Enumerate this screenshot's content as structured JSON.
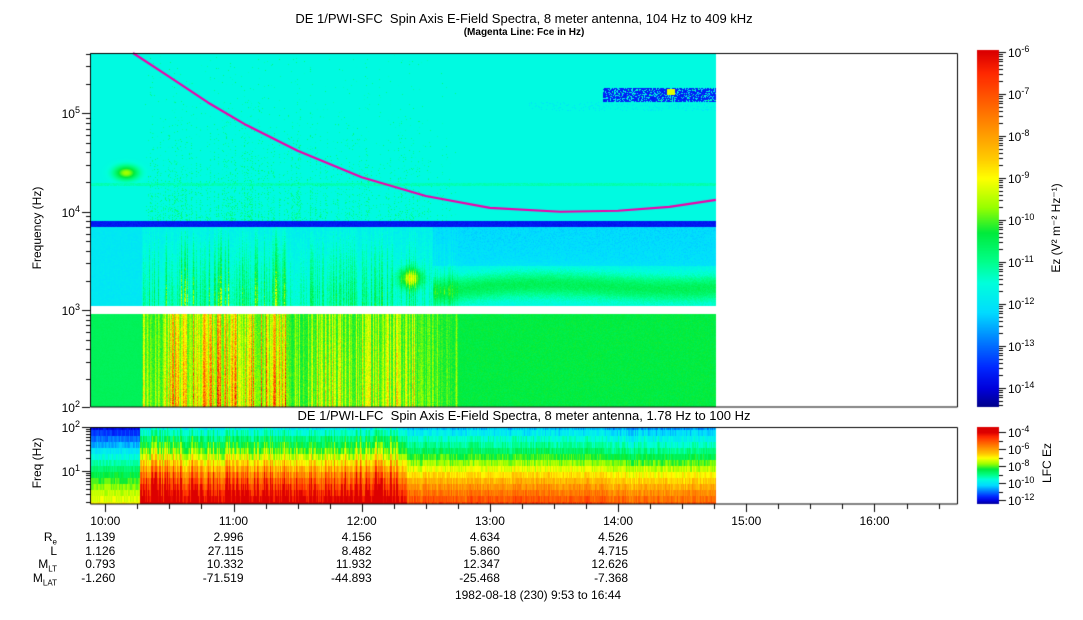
{
  "figure": {
    "background": "#ffffff",
    "footer": "1982-08-18 (230) 9:53 to 16:44"
  },
  "chart_data": [
    {
      "type": "heatmap",
      "instrument": "SFC",
      "title": "DE 1/PWI-SFC  Spin Axis E-Field Spectra, 8 meter antenna, 104 Hz to 409 kHz",
      "subtitle": "(Magenta Line: Fce in Hz)",
      "ylabel": "Frequency (Hz)",
      "y_scale": "log",
      "y_range_hz": [
        104,
        409000
      ],
      "y_tick_exponents": [
        5,
        4,
        3,
        2
      ],
      "x_time_range": [
        "9:53",
        "16:44"
      ],
      "x_major_ticks": [
        "10:00",
        "11:00",
        "12:00",
        "13:00",
        "14:00",
        "15:00",
        "16:00"
      ],
      "x_minor_tick_minutes": 15,
      "data_end_time": "14:46",
      "colorbar": {
        "label": "Ez (V² m⁻² Hz⁻¹)",
        "tick_exponents": [
          -6,
          -7,
          -8,
          -9,
          -10,
          -11,
          -12,
          -13,
          -14
        ],
        "colormap": "rainbow"
      },
      "magenta_line": {
        "name": "Fce",
        "points_t_logf": [
          [
            10.216,
            5.612
          ],
          [
            10.5,
            5.37
          ],
          [
            10.8,
            5.11
          ],
          [
            11.1,
            4.88
          ],
          [
            11.5,
            4.62
          ],
          [
            12.0,
            4.35
          ],
          [
            12.5,
            4.16
          ],
          [
            13.0,
            4.04
          ],
          [
            13.55,
            4.0
          ],
          [
            14.0,
            4.01
          ],
          [
            14.4,
            4.05
          ],
          [
            14.763,
            4.12
          ]
        ]
      },
      "features": [
        "intense broadband bursts 10:15-12:40 below ~4 kHz reaching ~1e-7 V2/m2/Hz",
        "persistent narrowband emission line near 19 kHz across all data",
        "white data-gap band near 1 kHz",
        "deep blue background ~1e-13 above 8 kHz with horizontal banding",
        "weak patchy emission near 150 kHz from ~13:55 to data end with bright spot ~14:25",
        "green-yellow blob near 25 kHz at ~10:10",
        "wavy green band near 1.5-2.5 kHz after ~12:40"
      ]
    },
    {
      "type": "heatmap",
      "instrument": "LFC",
      "title": "DE 1/PWI-LFC  Spin Axis E-Field Spectra, 8 meter antenna, 1.78 Hz to 100 Hz",
      "ylabel": "Freq (Hz)",
      "y_scale": "log",
      "y_range_hz": [
        1.78,
        100
      ],
      "y_tick_exponents": [
        2,
        1
      ],
      "colorbar": {
        "label": "LFC Ez",
        "tick_exponents": [
          -4,
          -6,
          -8,
          -10,
          -12
        ],
        "colormap": "rainbow"
      },
      "features": [
        "quiet blue-to-green profile before ~10:16",
        "intense red low-frequency turbulence 10:16-12:20 with vertical striping",
        "steady gradient green (top) to red (bottom) until data end ~14:46"
      ]
    },
    {
      "type": "table",
      "name": "ephemeris",
      "columns": [
        "10:00",
        "11:00",
        "12:00",
        "13:00",
        "14:00"
      ],
      "rows": [
        {
          "label": "R",
          "sub": "e",
          "values": [
            "1.139",
            "2.996",
            "4.156",
            "4.634",
            "4.526"
          ]
        },
        {
          "label": "L",
          "sub": "",
          "values": [
            "1.126",
            "27.115",
            "8.482",
            "5.860",
            "4.715"
          ]
        },
        {
          "label": "M",
          "sub": "LT",
          "values": [
            "0.793",
            "10.332",
            "11.932",
            "12.347",
            "12.626"
          ]
        },
        {
          "label": "M",
          "sub": "LAT",
          "values": [
            "-1.260",
            "-71.519",
            "-44.893",
            "-25.468",
            "-7.368"
          ]
        }
      ]
    }
  ]
}
